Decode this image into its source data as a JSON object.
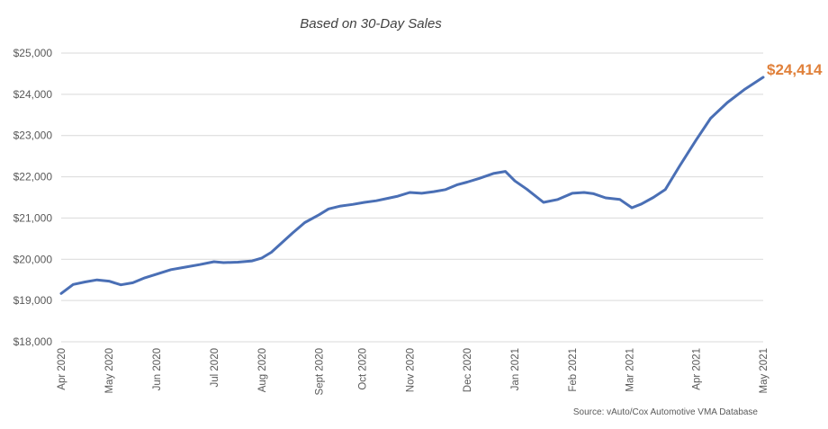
{
  "chart_data": {
    "type": "line",
    "title": "Based on 30-Day Sales",
    "xlabel": "",
    "ylabel": "",
    "ylim": [
      18000,
      25000
    ],
    "y_ticks": [
      18000,
      19000,
      20000,
      21000,
      22000,
      23000,
      24000,
      25000
    ],
    "y_tick_labels": [
      "$18,000",
      "$19,000",
      "$20,000",
      "$21,000",
      "$22,000",
      "$23,000",
      "$24,000",
      "$25,000"
    ],
    "x_tick_labels": [
      "Apr 2020",
      "May 2020",
      "Jun 2020",
      "Jul 2020",
      "Aug 2020",
      "Sept 2020",
      "Oct 2020",
      "Nov 2020",
      "Dec 2020",
      "Jan 2021",
      "Feb 2021",
      "Mar 2021",
      "Apr 2021",
      "May 2021"
    ],
    "x_tick_positions": [
      0,
      1,
      2,
      3.2,
      4.2,
      5.4,
      6.3,
      7.3,
      8.5,
      9.5,
      10.7,
      11.9,
      13.3,
      14.7
    ],
    "grid": true,
    "legend": "none",
    "series": [
      {
        "x": [
          0,
          0.25,
          0.5,
          0.75,
          1,
          1.25,
          1.5,
          1.75,
          2,
          2.3,
          2.6,
          2.9,
          3.2,
          3.4,
          3.7,
          4,
          4.2,
          4.4,
          4.6,
          4.85,
          5.1,
          5.4,
          5.6,
          5.85,
          6.1,
          6.35,
          6.6,
          6.85,
          7.05,
          7.3,
          7.55,
          7.8,
          8.05,
          8.3,
          8.5,
          8.75,
          9.05,
          9.3,
          9.5,
          9.75,
          10.1,
          10.4,
          10.7,
          10.95,
          11.15,
          11.4,
          11.7,
          11.95,
          12.15,
          12.4,
          12.65,
          12.95,
          13.3,
          13.6,
          13.95,
          14.3,
          14.7
        ],
        "values": [
          19170,
          19390,
          19450,
          19500,
          19470,
          19380,
          19430,
          19550,
          19640,
          19750,
          19810,
          19870,
          19940,
          19920,
          19930,
          19960,
          20030,
          20170,
          20380,
          20640,
          20890,
          21080,
          21220,
          21290,
          21330,
          21380,
          21420,
          21480,
          21530,
          21620,
          21600,
          21640,
          21690,
          21810,
          21870,
          21960,
          22080,
          22130,
          21900,
          21700,
          21380,
          21450,
          21600,
          21620,
          21590,
          21490,
          21450,
          21250,
          21340,
          21500,
          21690,
          22260,
          22900,
          23420,
          23800,
          24110,
          24414
        ],
        "color": "#4a6fb5"
      }
    ],
    "annotations": [
      {
        "text": "$24,414",
        "color": "#e0803a"
      }
    ],
    "source": "Source: vAuto/Cox Automotive VMA Database"
  }
}
